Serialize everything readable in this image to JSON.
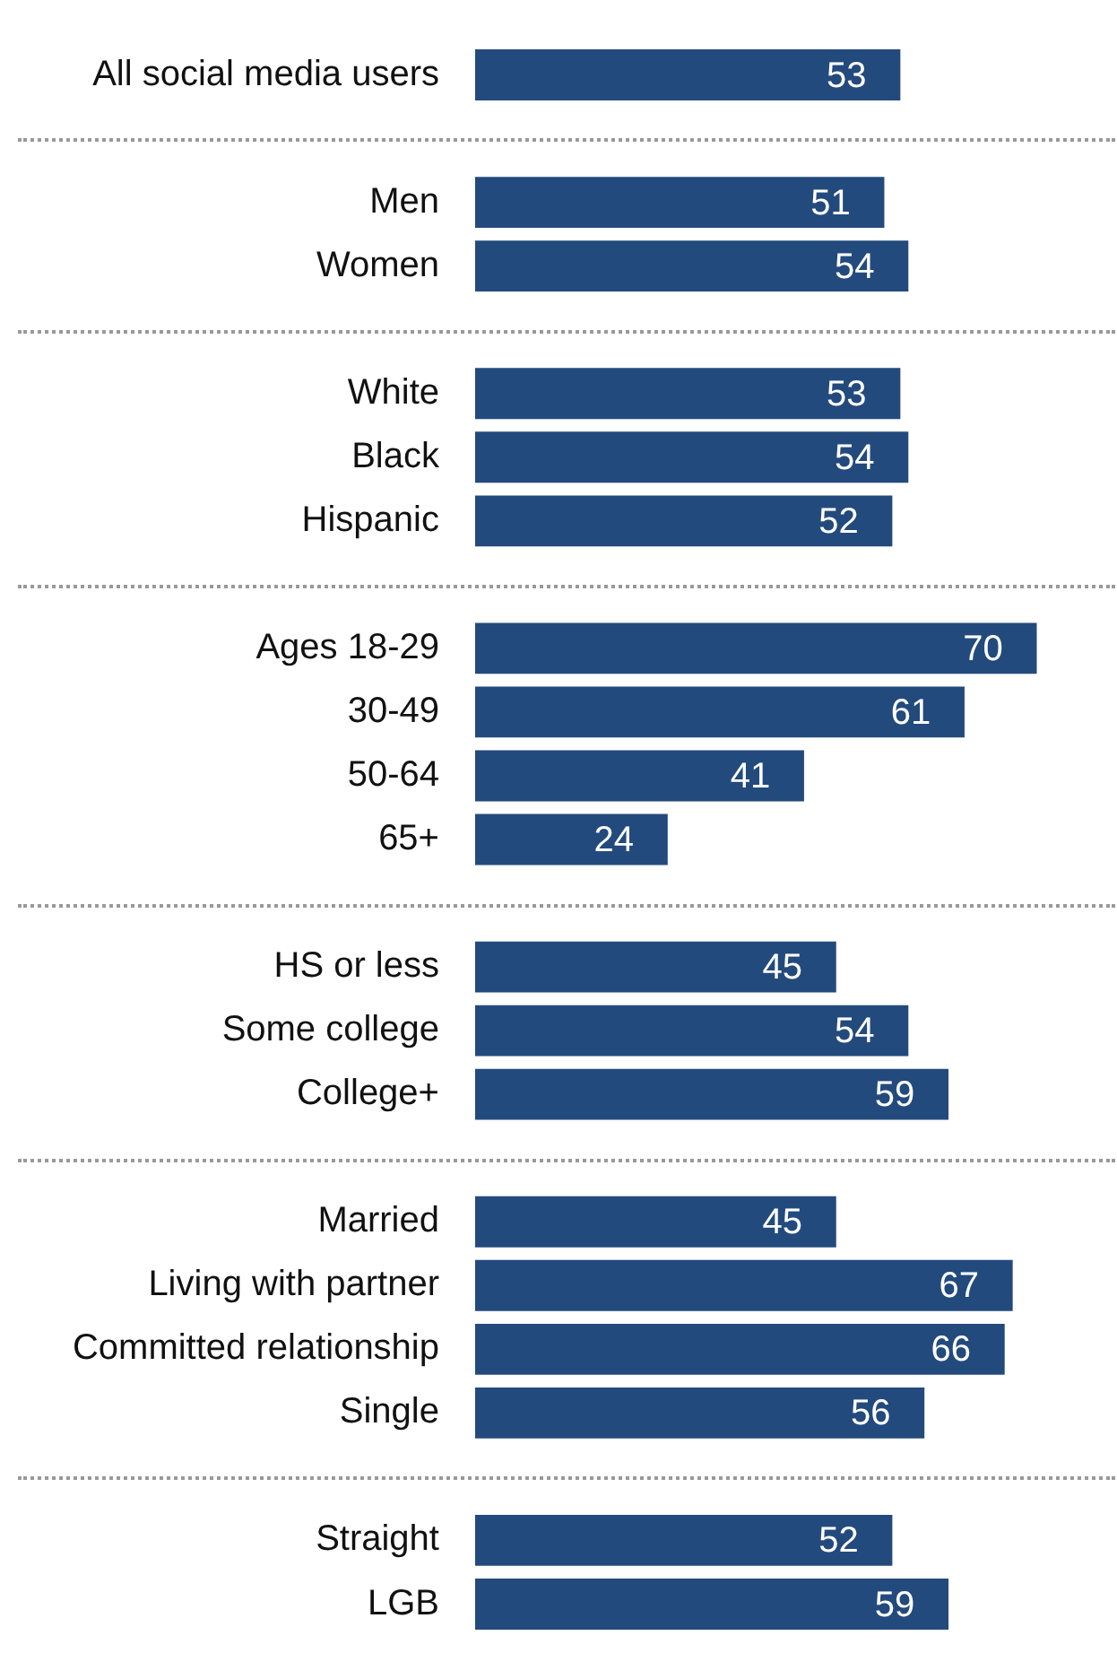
{
  "chart_data": {
    "type": "bar",
    "orientation": "horizontal",
    "categories": [
      "All social media users",
      null,
      "Men",
      "Women",
      null,
      "White",
      "Black",
      "Hispanic",
      null,
      "Ages 18-29",
      "30-49",
      "50-64",
      "65+",
      null,
      "HS or less",
      "Some college",
      "College+",
      null,
      "Married",
      "Living with partner",
      "Committed relationship",
      "Single",
      null,
      "Straight",
      "LGB"
    ],
    "values": [
      53,
      null,
      51,
      54,
      null,
      53,
      54,
      52,
      null,
      70,
      61,
      41,
      24,
      null,
      45,
      54,
      59,
      null,
      45,
      67,
      66,
      56,
      null,
      52,
      59
    ],
    "color": "#234a7d",
    "data_labels": true,
    "grid": false,
    "legend": false
  }
}
